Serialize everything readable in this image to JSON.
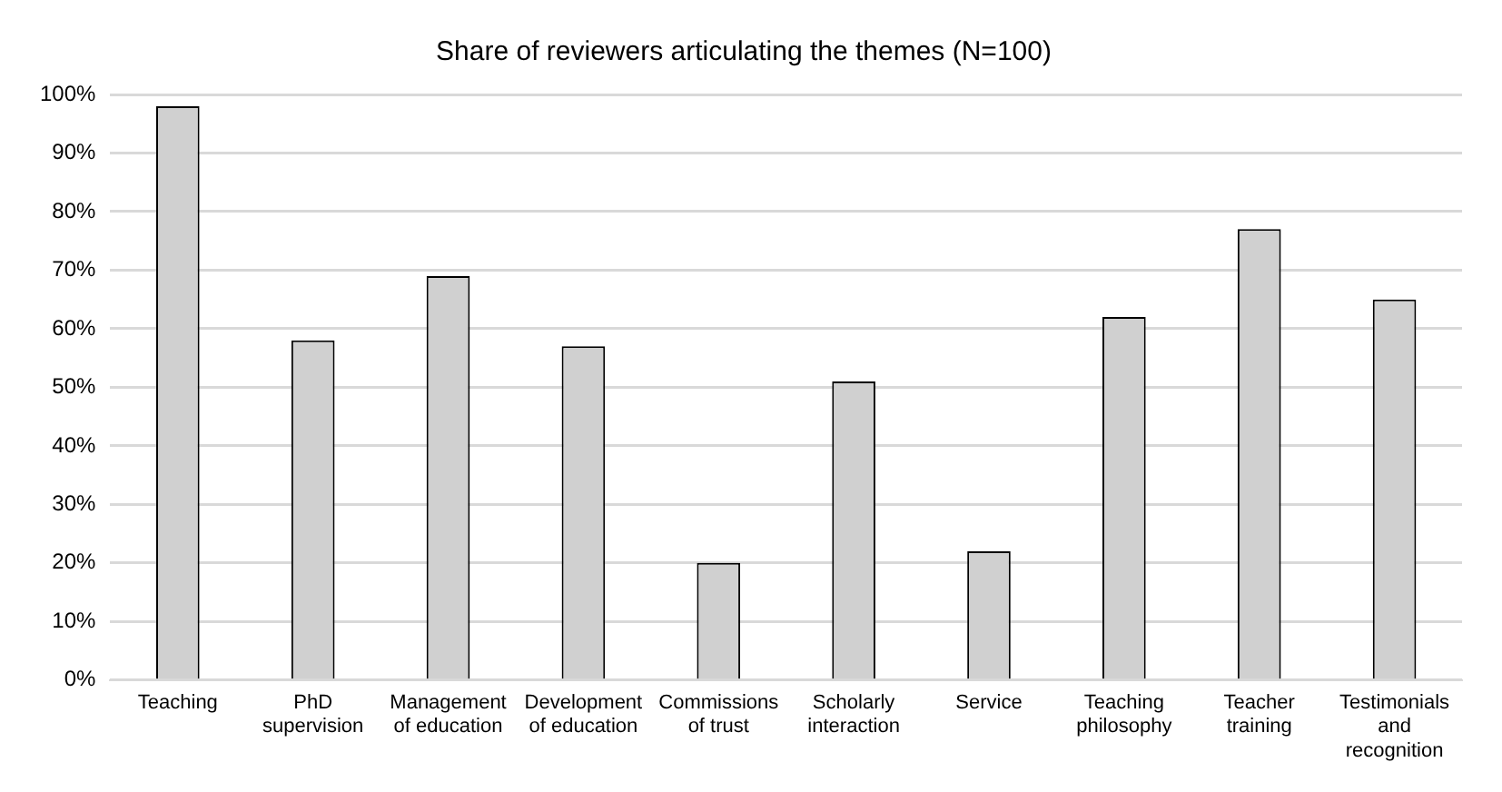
{
  "chart_data": {
    "type": "bar",
    "title": "Share of reviewers articulating the themes (N=100)",
    "categories": [
      "Teaching",
      "PhD supervision",
      "Management of education",
      "Development of education",
      "Commissions of trust",
      "Scholarly interaction",
      "Service",
      "Teaching philosophy",
      "Teacher training",
      "Testimonials and recognition"
    ],
    "values": [
      98,
      58,
      69,
      57,
      20,
      51,
      22,
      62,
      77,
      65
    ],
    "color": "#d0d0d0",
    "ylim": [
      0,
      100
    ],
    "yticks": [
      {
        "value": 0,
        "label": "0%"
      },
      {
        "value": 10,
        "label": "10%"
      },
      {
        "value": 20,
        "label": "20%"
      },
      {
        "value": 30,
        "label": "30%"
      },
      {
        "value": 40,
        "label": "40%"
      },
      {
        "value": 50,
        "label": "50%"
      },
      {
        "value": 60,
        "label": "60%"
      },
      {
        "value": 70,
        "label": "70%"
      },
      {
        "value": 80,
        "label": "80%"
      },
      {
        "value": 90,
        "label": "90%"
      },
      {
        "value": 100,
        "label": "100%"
      }
    ],
    "grid": "y",
    "legend": false
  }
}
